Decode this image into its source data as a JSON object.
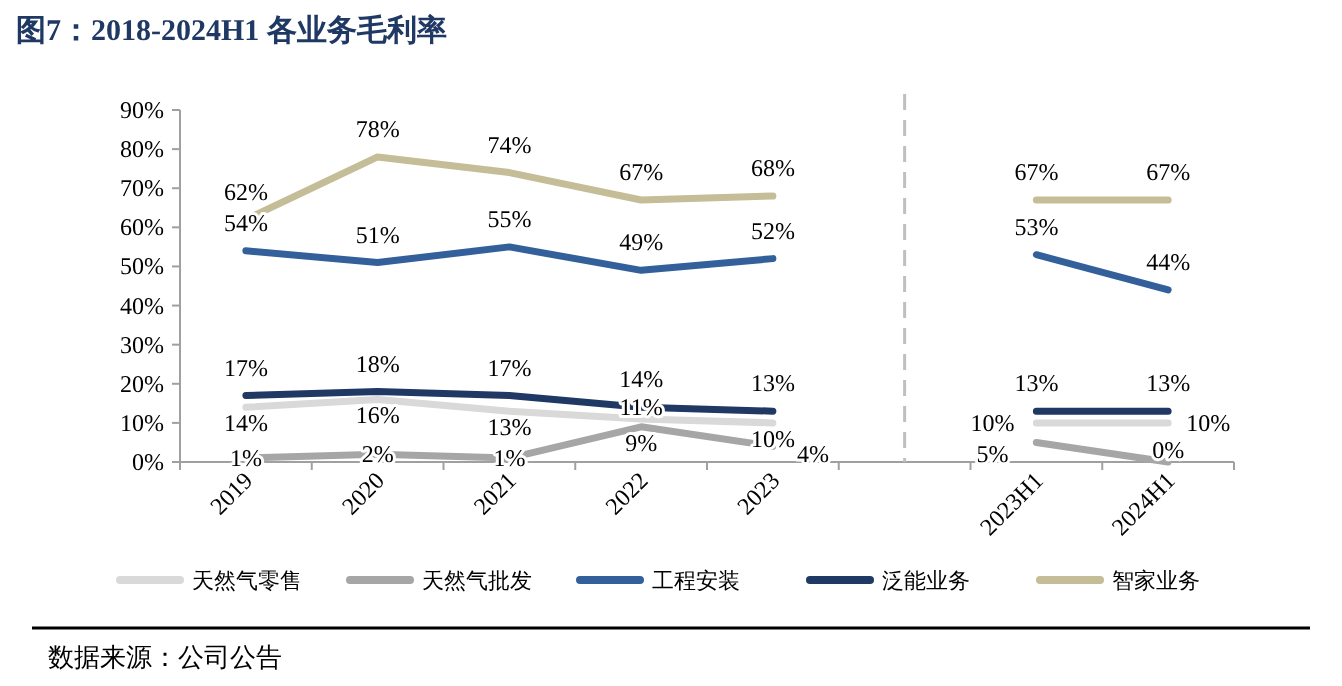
{
  "chart_data": {
    "type": "line",
    "title": "图7：2018-2024H1 各业务毛利率",
    "categories": [
      "2019",
      "2020",
      "2021",
      "2022",
      "2023",
      null,
      "2023H1",
      "2024H1"
    ],
    "series": [
      {
        "name": "天然气零售",
        "color": "#d9d9d9",
        "values": [
          14,
          16,
          13,
          11,
          10,
          null,
          10,
          10
        ],
        "value_labels": [
          "14%",
          "16%",
          "13%",
          "11%",
          "10%",
          null,
          "10%",
          "10%"
        ]
      },
      {
        "name": "天然气批发",
        "color": "#a6a6a6",
        "values": [
          1,
          2,
          1,
          9,
          4,
          null,
          5,
          0
        ],
        "value_labels": [
          "1%",
          "2%",
          "1%",
          "9%",
          "4%",
          null,
          "5%",
          "0%"
        ]
      },
      {
        "name": "工程安装",
        "color": "#33609a",
        "values": [
          54,
          51,
          55,
          49,
          52,
          null,
          53,
          44
        ],
        "value_labels": [
          "54%",
          "51%",
          "55%",
          "49%",
          "52%",
          null,
          "53%",
          "44%"
        ]
      },
      {
        "name": "泛能业务",
        "color": "#1f3864",
        "values": [
          17,
          18,
          17,
          14,
          13,
          null,
          13,
          13
        ],
        "value_labels": [
          "17%",
          "18%",
          "17%",
          "14%",
          "13%",
          null,
          "13%",
          "13%"
        ]
      },
      {
        "name": "智家业务",
        "color": "#c4bd97",
        "values": [
          62,
          78,
          74,
          67,
          68,
          null,
          67,
          67
        ],
        "value_labels": [
          "62%",
          "78%",
          "74%",
          "67%",
          "68%",
          null,
          "67%",
          "67%"
        ]
      }
    ],
    "ylim": [
      0,
      90
    ],
    "yticks": [
      {
        "value": 0,
        "label": "0%"
      },
      {
        "value": 10,
        "label": "10%"
      },
      {
        "value": 20,
        "label": "20%"
      },
      {
        "value": 30,
        "label": "30%"
      },
      {
        "value": 40,
        "label": "40%"
      },
      {
        "value": 50,
        "label": "50%"
      },
      {
        "value": 60,
        "label": "60%"
      },
      {
        "value": 70,
        "label": "70%"
      },
      {
        "value": 80,
        "label": "80%"
      },
      {
        "value": 90,
        "label": "90%"
      }
    ],
    "legend": "bottom",
    "marker": "none",
    "annotations": [
      "数据来源：公司公告"
    ]
  }
}
